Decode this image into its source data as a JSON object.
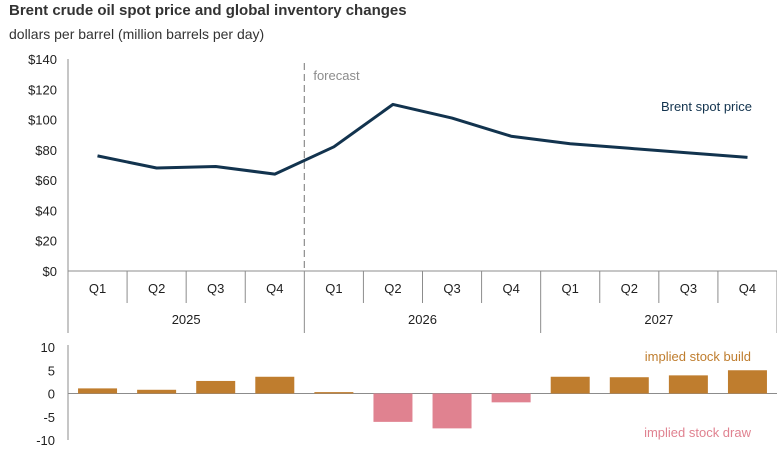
{
  "chart_data": [
    {
      "type": "line",
      "title": "Brent crude oil spot price and global inventory changes",
      "subtitle": "dollars per barrel (million barrels per day)",
      "yticks": [
        "$140",
        "$120",
        "$100",
        "$80",
        "$60",
        "$40",
        "$20",
        "$0"
      ],
      "ylim": [
        0,
        140
      ],
      "quarters": [
        "Q1",
        "Q2",
        "Q3",
        "Q4",
        "Q1",
        "Q2",
        "Q3",
        "Q4",
        "Q1",
        "Q2",
        "Q3",
        "Q4"
      ],
      "years": [
        "2025",
        "2026",
        "2027"
      ],
      "forecast_label": "forecast",
      "series": [
        {
          "name": "Brent spot price",
          "values": [
            76,
            68,
            69,
            64,
            82,
            110,
            101,
            89,
            84,
            81,
            78,
            75
          ],
          "color": "#12334e"
        }
      ]
    },
    {
      "type": "bar",
      "yticks": [
        "10",
        "5",
        "0",
        "-5",
        "-10"
      ],
      "ylim": [
        -10,
        10
      ],
      "values": [
        1.1,
        0.8,
        2.7,
        3.6,
        0.3,
        -6.1,
        -7.5,
        -1.9,
        3.6,
        3.5,
        3.9,
        5.0
      ],
      "labels": {
        "build": "implied stock build",
        "draw": "implied stock draw"
      },
      "colors": {
        "build": "#bf7d2e",
        "draw": "#e08290"
      }
    }
  ]
}
